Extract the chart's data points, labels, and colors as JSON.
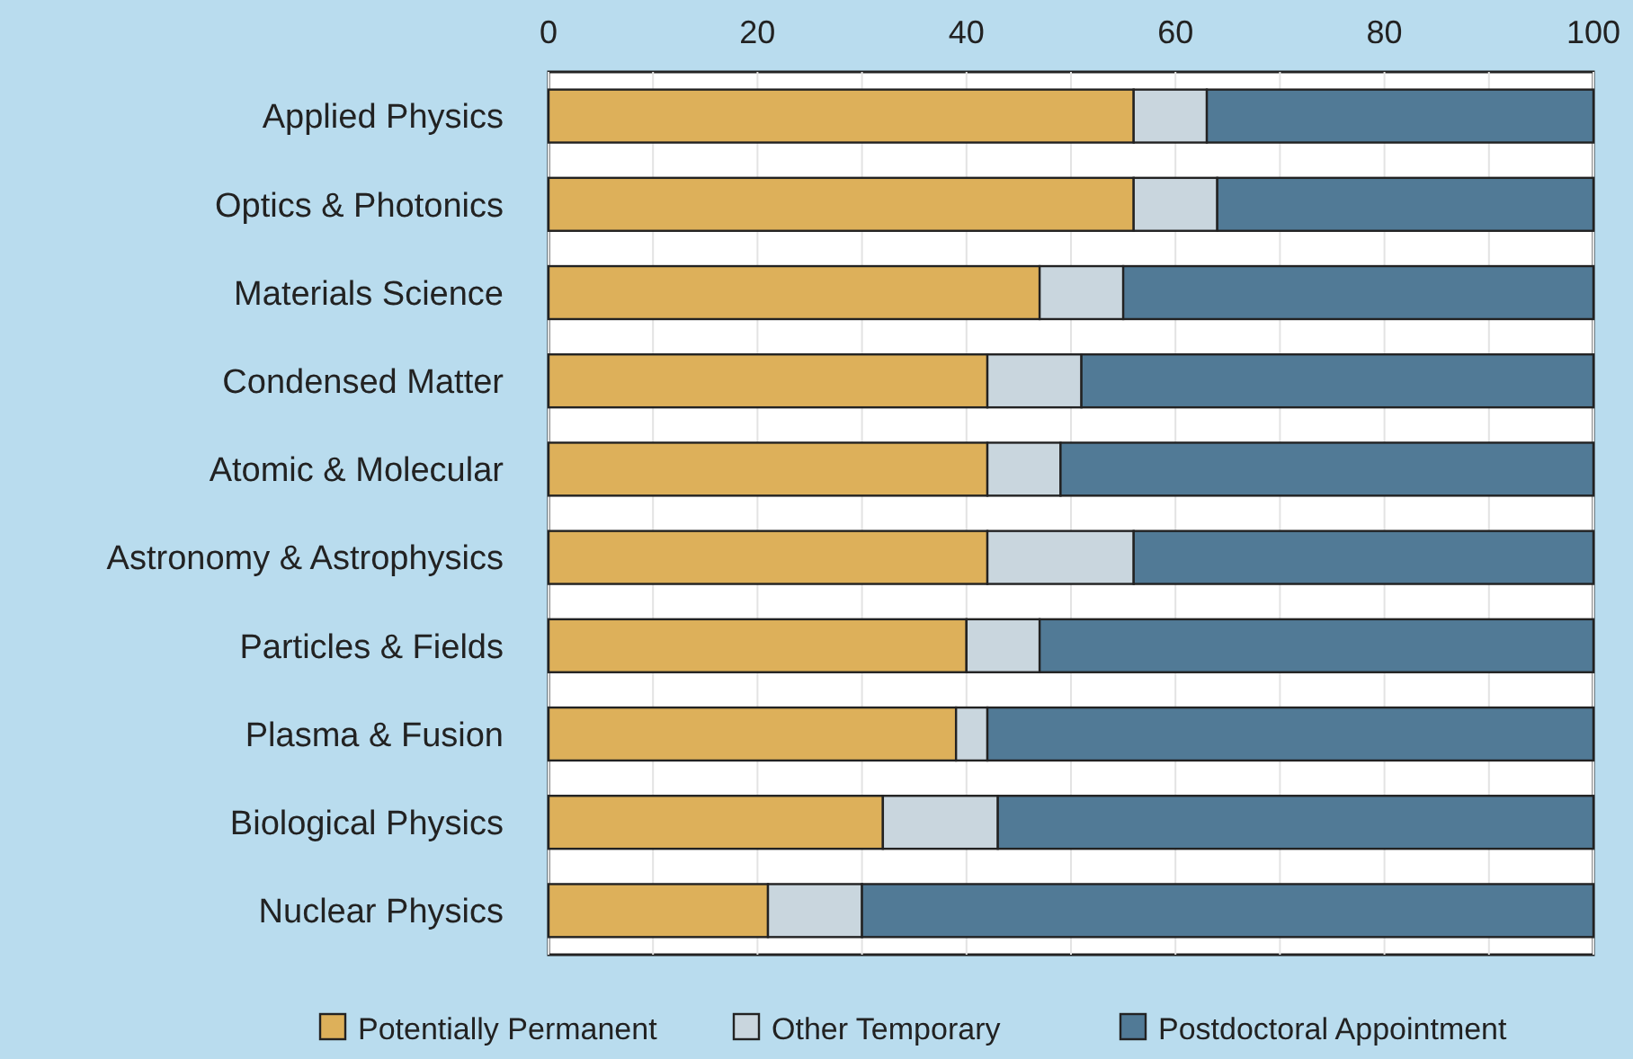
{
  "chart_data": {
    "type": "bar",
    "orientation": "horizontal",
    "stacked": true,
    "categories": [
      "Applied Physics",
      "Optics & Photonics",
      "Materials Science",
      "Condensed Matter",
      "Atomic & Molecular",
      "Astronomy & Astrophysics",
      "Particles & Fields",
      "Plasma & Fusion",
      "Biological Physics",
      "Nuclear Physics"
    ],
    "series": [
      {
        "name": "Potentially Permanent",
        "color": "#ddb05a",
        "values": [
          56,
          56,
          47,
          42,
          42,
          42,
          40,
          39,
          32,
          21
        ]
      },
      {
        "name": "Other Temporary",
        "color": "#c9d6de",
        "values": [
          7,
          8,
          8,
          9,
          7,
          14,
          7,
          3,
          11,
          9
        ]
      },
      {
        "name": "Postdoctoral Appointment",
        "color": "#517a96",
        "values": [
          37,
          36,
          45,
          49,
          51,
          44,
          53,
          58,
          57,
          70
        ]
      }
    ],
    "xlim": [
      0,
      100
    ],
    "xticks": [
      0,
      {
        "value": 10,
        "label": null
      },
      20,
      {
        "value": 30,
        "label": null
      },
      40,
      {
        "value": 50,
        "label": null
      },
      60,
      {
        "value": 70,
        "label": null
      },
      80,
      {
        "value": 90,
        "label": null
      },
      100
    ],
    "grid": true,
    "legend": "bottom"
  }
}
